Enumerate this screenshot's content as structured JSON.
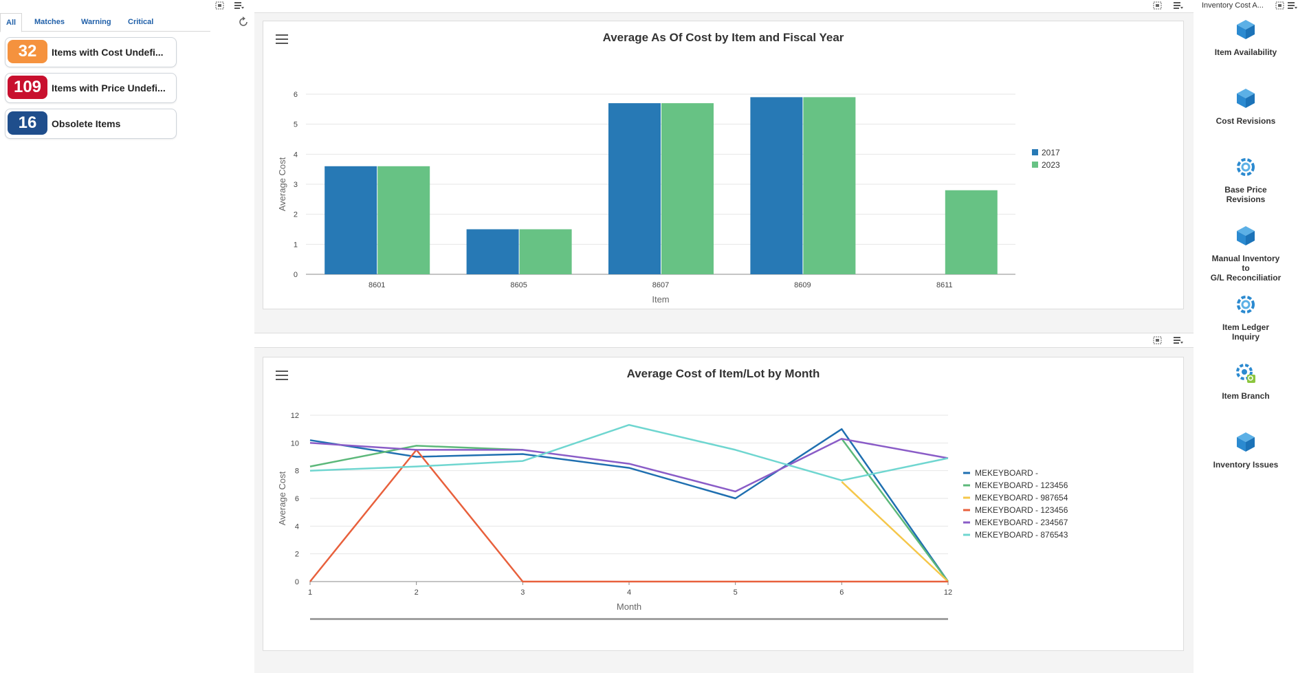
{
  "left": {
    "tabs": [
      "All",
      "Matches",
      "Warning",
      "Critical"
    ],
    "kpis": [
      {
        "value": "32",
        "label": "Items with Cost Undefi...",
        "color": "#f5923e"
      },
      {
        "value": "109",
        "label": "Items with Price Undefi...",
        "color": "#c8102e"
      },
      {
        "value": "16",
        "label": "Obsolete Items",
        "color": "#1f4e8c"
      }
    ]
  },
  "chart1": {
    "title": "Average As Of Cost by Item and Fiscal Year"
  },
  "chart2": {
    "title": "Average Cost of Item/Lot by Month"
  },
  "right": {
    "title": "Inventory Cost A...",
    "apps": [
      {
        "label": "Item Availability",
        "icon": "cube-icon"
      },
      {
        "label": "Cost Revisions",
        "icon": "cube-icon"
      },
      {
        "label": "Base Price\nRevisions",
        "icon": "gear-icon"
      },
      {
        "label": "Manual Inventory\nto\nG/L Reconciliatior",
        "icon": "cube-icon"
      },
      {
        "label": "Item Ledger\nInquiry",
        "icon": "gear-icon"
      },
      {
        "label": "Item Branch",
        "icon": "gear-search-icon"
      },
      {
        "label": "Inventory Issues",
        "icon": "cube-icon"
      }
    ]
  },
  "colors": {
    "blue": "#2779b5",
    "green": "#67c284",
    "accent": "#1f5fa8"
  },
  "chart_data": [
    {
      "type": "bar",
      "title": "Average As Of Cost by Item and Fiscal Year",
      "xlabel": "Item",
      "ylabel": "Average Cost",
      "categories": [
        "8601",
        "8605",
        "8607",
        "8609",
        "8611"
      ],
      "series": [
        {
          "name": "2017",
          "values": [
            3.6,
            1.5,
            5.7,
            5.9,
            null
          ],
          "color": "#2779b5"
        },
        {
          "name": "2023",
          "values": [
            3.6,
            1.5,
            5.7,
            5.9,
            2.8
          ],
          "color": "#67c284"
        }
      ],
      "ylim": [
        0,
        6
      ],
      "yticks": [
        0,
        1,
        2,
        3,
        4,
        5,
        6
      ],
      "legend": "right"
    },
    {
      "type": "line",
      "title": "Average Cost of Item/Lot by Month",
      "xlabel": "Month",
      "ylabel": "Average Cost",
      "x": [
        "1",
        "2",
        "3",
        "4",
        "5",
        "6",
        "12"
      ],
      "series": [
        {
          "name": "MEKEYBOARD -",
          "values": [
            10.2,
            9.0,
            9.2,
            8.2,
            6.0,
            11.0,
            0
          ],
          "color": "#1f6fb0"
        },
        {
          "name": "MEKEYBOARD - 123456",
          "values": [
            8.3,
            9.8,
            9.5,
            null,
            null,
            10.3,
            0
          ],
          "color": "#5cb87a"
        },
        {
          "name": "MEKEYBOARD - 987654",
          "values": [
            null,
            null,
            null,
            null,
            null,
            7.2,
            0
          ],
          "color": "#f5c74a"
        },
        {
          "name": "MEKEYBOARD - 123456",
          "values": [
            0,
            9.5,
            0,
            0,
            0,
            0,
            0
          ],
          "color": "#e8603c"
        },
        {
          "name": "MEKEYBOARD - 234567",
          "values": [
            10.0,
            9.5,
            9.5,
            8.5,
            6.5,
            10.3,
            8.9
          ],
          "color": "#8a5cc7"
        },
        {
          "name": "MEKEYBOARD - 876543",
          "values": [
            8.0,
            8.3,
            8.7,
            11.3,
            9.5,
            7.3,
            8.9
          ],
          "color": "#6fd6d0"
        }
      ],
      "ylim": [
        0,
        12
      ],
      "yticks": [
        0,
        2,
        4,
        6,
        8,
        10,
        12
      ],
      "legend": "right"
    }
  ]
}
